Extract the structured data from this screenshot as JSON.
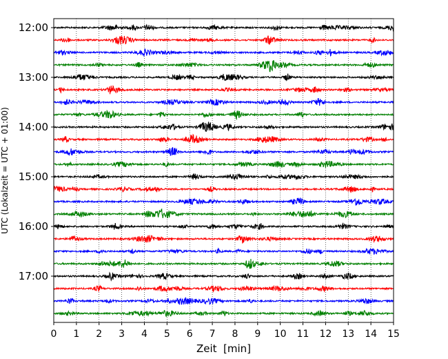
{
  "chart_data": {
    "type": "line",
    "title": "",
    "xlabel": "Zeit  [min]",
    "ylabel": "UTC (Lokalzeit = UTC + 01:00)",
    "xlim": [
      0,
      15
    ],
    "x_ticks": [
      "0",
      "1",
      "2",
      "3",
      "4",
      "5",
      "6",
      "7",
      "8",
      "9",
      "10",
      "11",
      "12",
      "13",
      "14",
      "15"
    ],
    "y_tick_labels": [
      "12:00",
      "13:00",
      "14:00",
      "15:00",
      "16:00",
      "17:00"
    ],
    "trace_interval_min": 15,
    "grid": "vertical dotted",
    "series_colors": [
      "#000000",
      "#ff0000",
      "#0000ff",
      "#008000"
    ],
    "traces": [
      {
        "start": "12:00",
        "color": "#000000"
      },
      {
        "start": "12:15",
        "color": "#ff0000"
      },
      {
        "start": "12:30",
        "color": "#0000ff"
      },
      {
        "start": "12:45",
        "color": "#008000"
      },
      {
        "start": "13:00",
        "color": "#000000"
      },
      {
        "start": "13:15",
        "color": "#ff0000"
      },
      {
        "start": "13:30",
        "color": "#0000ff"
      },
      {
        "start": "13:45",
        "color": "#008000"
      },
      {
        "start": "14:00",
        "color": "#000000"
      },
      {
        "start": "14:15",
        "color": "#ff0000"
      },
      {
        "start": "14:30",
        "color": "#0000ff"
      },
      {
        "start": "14:45",
        "color": "#008000"
      },
      {
        "start": "15:00",
        "color": "#000000"
      },
      {
        "start": "15:15",
        "color": "#ff0000"
      },
      {
        "start": "15:30",
        "color": "#0000ff"
      },
      {
        "start": "15:45",
        "color": "#008000"
      },
      {
        "start": "16:00",
        "color": "#000000"
      },
      {
        "start": "16:15",
        "color": "#ff0000"
      },
      {
        "start": "16:30",
        "color": "#0000ff"
      },
      {
        "start": "16:45",
        "color": "#008000"
      },
      {
        "start": "17:00",
        "color": "#000000"
      },
      {
        "start": "17:15",
        "color": "#ff0000"
      },
      {
        "start": "17:30",
        "color": "#0000ff"
      },
      {
        "start": "17:45",
        "color": "#008000"
      }
    ]
  }
}
